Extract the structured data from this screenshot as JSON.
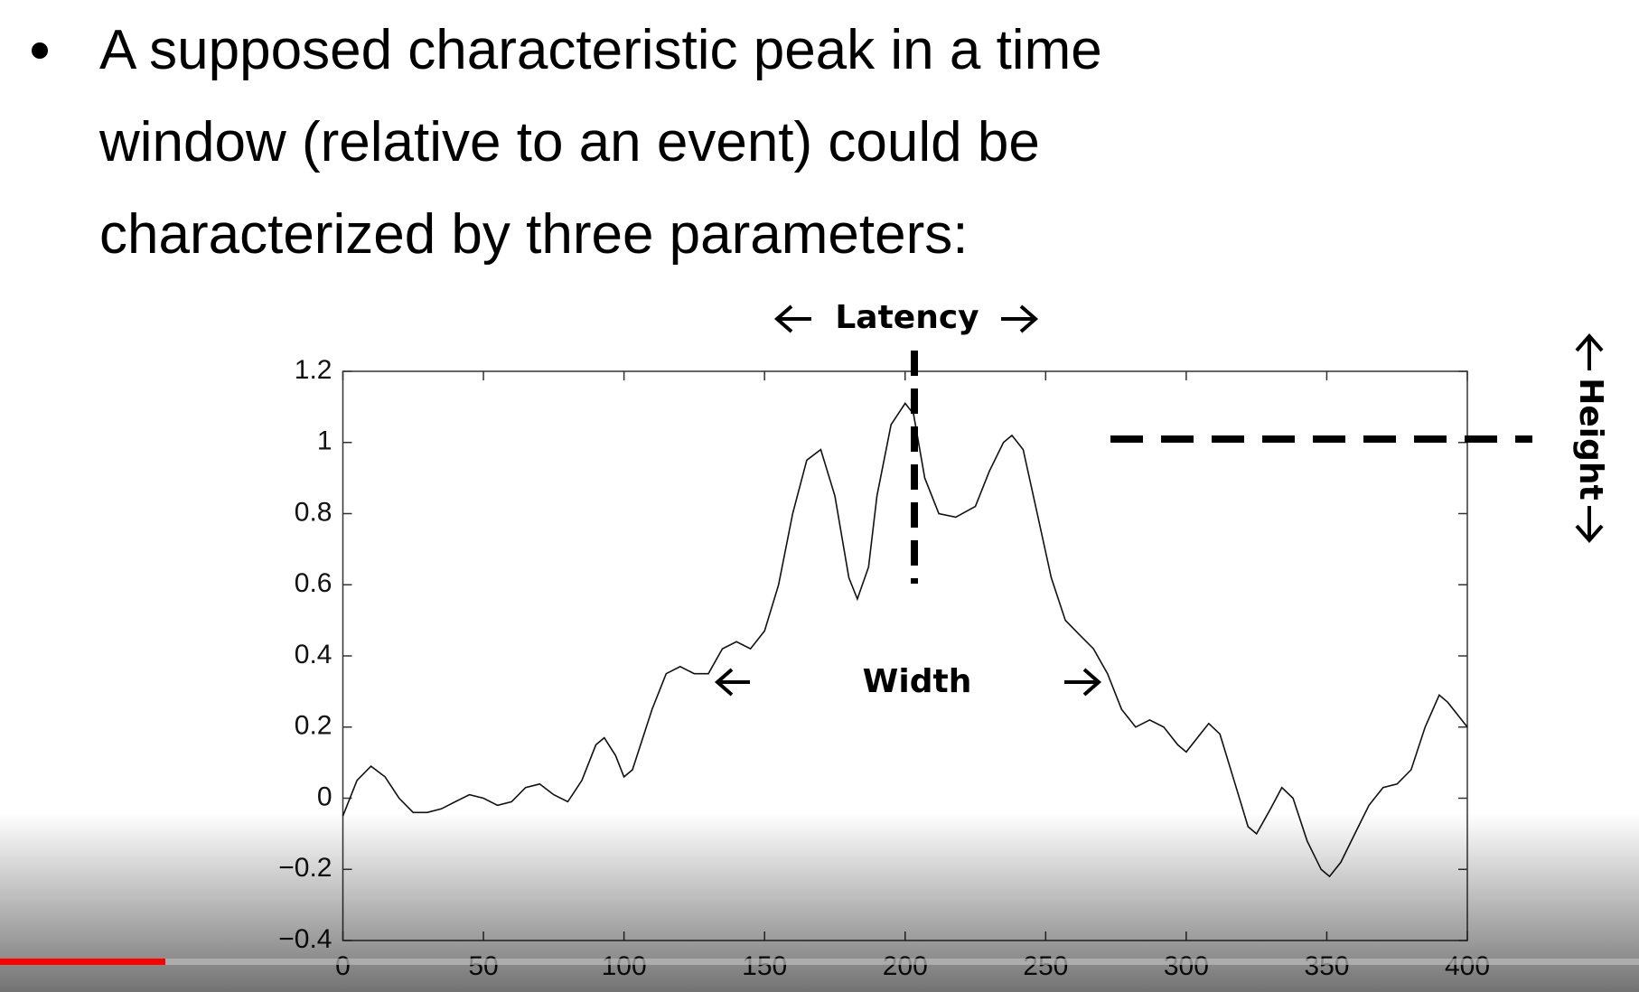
{
  "slide_text": [
    "A supposed characteristic peak in a time",
    "window (relative to an event) could be",
    "characterized by three parameters:"
  ],
  "chart_data": {
    "type": "line",
    "annotations": [
      "Latency",
      "Width",
      "Height"
    ],
    "x": [
      0,
      5,
      10,
      15,
      20,
      25,
      30,
      35,
      40,
      45,
      50,
      55,
      60,
      65,
      70,
      75,
      80,
      85,
      90,
      93,
      97,
      100,
      103,
      110,
      115,
      120,
      125,
      130,
      135,
      140,
      145,
      150,
      155,
      160,
      165,
      170,
      175,
      180,
      183,
      187,
      190,
      195,
      200,
      203,
      207,
      212,
      218,
      225,
      230,
      235,
      238,
      242,
      247,
      252,
      257,
      262,
      267,
      272,
      277,
      282,
      287,
      292,
      297,
      300,
      305,
      308,
      312,
      317,
      322,
      325,
      330,
      334,
      338,
      343,
      348,
      351,
      355,
      360,
      365,
      370,
      375,
      380,
      385,
      390,
      393,
      400
    ],
    "series": [
      {
        "color": "#111111",
        "values": [
          -0.05,
          0.05,
          0.09,
          0.06,
          0.0,
          -0.04,
          -0.04,
          -0.03,
          -0.01,
          0.01,
          0.0,
          -0.02,
          -0.01,
          0.03,
          0.04,
          0.01,
          -0.01,
          0.05,
          0.15,
          0.17,
          0.12,
          0.06,
          0.08,
          0.25,
          0.35,
          0.37,
          0.35,
          0.35,
          0.42,
          0.44,
          0.42,
          0.47,
          0.6,
          0.8,
          0.95,
          0.98,
          0.85,
          0.62,
          0.56,
          0.65,
          0.85,
          1.05,
          1.11,
          1.08,
          0.9,
          0.8,
          0.79,
          0.82,
          0.92,
          1.0,
          1.02,
          0.98,
          0.8,
          0.62,
          0.5,
          0.46,
          0.42,
          0.35,
          0.25,
          0.2,
          0.22,
          0.2,
          0.15,
          0.13,
          0.18,
          0.21,
          0.18,
          0.05,
          -0.08,
          -0.1,
          -0.03,
          0.03,
          0.0,
          -0.12,
          -0.2,
          -0.22,
          -0.18,
          -0.1,
          -0.02,
          0.03,
          0.04,
          0.08,
          0.2,
          0.29,
          0.27,
          0.2
        ]
      }
    ],
    "xlim": [
      0,
      400
    ],
    "xticks": [
      0,
      50,
      100,
      150,
      200,
      250,
      300,
      350,
      400
    ],
    "ylim": [
      -0.4,
      1.2
    ],
    "yticks": [
      {
        "value": -0.4,
        "label": "−0.4"
      },
      {
        "value": -0.2,
        "label": "−0.2"
      },
      0,
      0.2,
      0.4,
      0.6,
      0.8,
      1,
      1.2
    ]
  }
}
